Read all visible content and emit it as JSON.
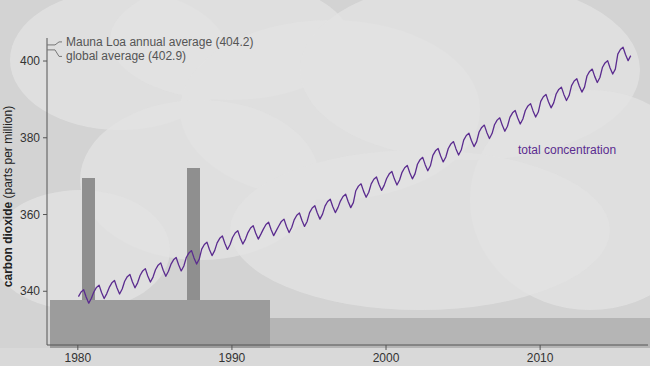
{
  "chart_data": {
    "type": "line",
    "x": [
      1980.04,
      1980.21,
      1980.38,
      1980.54,
      1980.71,
      1980.88,
      1981.04,
      1981.21,
      1981.38,
      1981.54,
      1981.71,
      1981.88,
      1982.04,
      1982.21,
      1982.38,
      1982.54,
      1982.71,
      1982.88,
      1983.04,
      1983.21,
      1983.38,
      1983.54,
      1983.71,
      1983.88,
      1984.04,
      1984.21,
      1984.38,
      1984.54,
      1984.71,
      1984.88,
      1985.04,
      1985.21,
      1985.38,
      1985.54,
      1985.71,
      1985.88,
      1986.04,
      1986.21,
      1986.38,
      1986.54,
      1986.71,
      1986.88,
      1987.04,
      1987.21,
      1987.38,
      1987.54,
      1987.71,
      1987.88,
      1988.04,
      1988.21,
      1988.38,
      1988.54,
      1988.71,
      1988.88,
      1989.04,
      1989.21,
      1989.38,
      1989.54,
      1989.71,
      1989.88,
      1990.04,
      1990.21,
      1990.38,
      1990.54,
      1990.71,
      1990.88,
      1991.04,
      1991.21,
      1991.38,
      1991.54,
      1991.71,
      1991.88,
      1992.04,
      1992.21,
      1992.38,
      1992.54,
      1992.71,
      1992.88,
      1993.04,
      1993.21,
      1993.38,
      1993.54,
      1993.71,
      1993.88,
      1994.04,
      1994.21,
      1994.38,
      1994.54,
      1994.71,
      1994.88,
      1995.04,
      1995.21,
      1995.38,
      1995.54,
      1995.71,
      1995.88,
      1996.04,
      1996.21,
      1996.38,
      1996.54,
      1996.71,
      1996.88,
      1997.04,
      1997.21,
      1997.38,
      1997.54,
      1997.71,
      1997.88,
      1998.04,
      1998.21,
      1998.38,
      1998.54,
      1998.71,
      1998.88,
      1999.04,
      1999.21,
      1999.38,
      1999.54,
      1999.71,
      1999.88,
      2000.04,
      2000.21,
      2000.38,
      2000.54,
      2000.71,
      2000.88,
      2001.04,
      2001.21,
      2001.38,
      2001.54,
      2001.71,
      2001.88,
      2002.04,
      2002.21,
      2002.38,
      2002.54,
      2002.71,
      2002.88,
      2003.04,
      2003.21,
      2003.38,
      2003.54,
      2003.71,
      2003.88,
      2004.04,
      2004.21,
      2004.38,
      2004.54,
      2004.71,
      2004.88,
      2005.04,
      2005.21,
      2005.38,
      2005.54,
      2005.71,
      2005.88,
      2006.04,
      2006.21,
      2006.38,
      2006.54,
      2006.71,
      2006.88,
      2007.04,
      2007.21,
      2007.38,
      2007.54,
      2007.71,
      2007.88,
      2008.04,
      2008.21,
      2008.38,
      2008.54,
      2008.71,
      2008.88,
      2009.04,
      2009.21,
      2009.38,
      2009.54,
      2009.71,
      2009.88,
      2010.04,
      2010.21,
      2010.38,
      2010.54,
      2010.71,
      2010.88,
      2011.04,
      2011.21,
      2011.38,
      2011.54,
      2011.71,
      2011.88,
      2012.04,
      2012.21,
      2012.38,
      2012.54,
      2012.71,
      2012.88,
      2013.04,
      2013.21,
      2013.38,
      2013.54,
      2013.71,
      2013.88,
      2014.04,
      2014.21,
      2014.38,
      2014.54,
      2014.71,
      2014.88,
      2015.04,
      2015.21,
      2015.38,
      2015.54,
      2015.71,
      2015.88
    ],
    "series": [
      {
        "name": "total concentration",
        "color": "#5b2c8f",
        "values": [
          338.6,
          339.8,
          340.4,
          338.5,
          336.9,
          338.2,
          339.8,
          341.0,
          341.6,
          339.7,
          338.1,
          339.4,
          341.0,
          342.2,
          342.8,
          340.9,
          339.3,
          340.6,
          342.6,
          343.8,
          344.4,
          342.5,
          340.9,
          342.2,
          344.1,
          345.3,
          345.9,
          344.0,
          342.4,
          343.7,
          345.6,
          346.8,
          347.4,
          345.5,
          343.9,
          345.2,
          347.0,
          348.2,
          348.8,
          346.9,
          345.3,
          346.6,
          348.8,
          350.0,
          350.6,
          348.7,
          347.1,
          348.4,
          351.0,
          352.2,
          352.8,
          350.9,
          349.3,
          350.6,
          352.6,
          353.8,
          354.4,
          352.5,
          350.9,
          352.2,
          354.0,
          355.2,
          355.8,
          353.9,
          352.3,
          353.6,
          355.3,
          356.5,
          357.1,
          355.2,
          353.6,
          354.9,
          356.2,
          357.4,
          358.0,
          356.1,
          354.5,
          355.8,
          357.0,
          358.2,
          358.8,
          356.9,
          355.3,
          356.6,
          358.6,
          359.8,
          360.4,
          358.5,
          356.9,
          358.2,
          360.5,
          361.7,
          362.3,
          360.4,
          358.8,
          360.1,
          362.2,
          363.4,
          364.0,
          362.1,
          360.5,
          361.8,
          363.5,
          364.7,
          365.3,
          363.4,
          361.8,
          363.1,
          366.2,
          367.4,
          368.0,
          366.1,
          364.5,
          365.8,
          368.0,
          369.2,
          369.8,
          367.9,
          366.3,
          367.6,
          369.4,
          370.6,
          371.2,
          369.3,
          367.7,
          369.0,
          371.0,
          372.2,
          372.8,
          370.9,
          369.3,
          370.6,
          373.1,
          374.3,
          374.9,
          373.0,
          371.4,
          372.7,
          375.4,
          376.6,
          377.2,
          375.3,
          373.7,
          375.0,
          377.2,
          378.4,
          379.0,
          377.1,
          375.5,
          376.8,
          379.4,
          380.6,
          381.2,
          379.3,
          377.7,
          379.0,
          381.5,
          382.7,
          383.3,
          381.4,
          379.8,
          381.1,
          383.4,
          384.6,
          385.2,
          383.3,
          381.7,
          383.0,
          385.3,
          386.5,
          387.1,
          385.2,
          383.6,
          384.9,
          387.1,
          388.3,
          388.9,
          387.0,
          385.4,
          386.7,
          389.5,
          390.7,
          391.3,
          389.4,
          387.8,
          389.1,
          391.4,
          392.6,
          393.2,
          391.3,
          389.7,
          391.0,
          393.6,
          394.8,
          395.4,
          393.5,
          391.9,
          393.2,
          396.1,
          397.3,
          397.9,
          396.0,
          394.4,
          395.7,
          398.3,
          399.5,
          400.1,
          398.2,
          396.6,
          397.9,
          401.8,
          403.0,
          403.6,
          401.7,
          400.1,
          401.4
        ]
      }
    ],
    "y_label": "carbon dioxide (parts per million)",
    "xlim": [
      1978,
      2017
    ],
    "ylim": [
      326,
      406
    ],
    "xticks": [
      1980,
      1990,
      2000,
      2010
    ],
    "yticks": [
      340,
      360,
      380,
      400
    ],
    "grid": false,
    "annotations": [
      {
        "text": "Mauna Loa annual average (404.2)",
        "value": 404.2
      },
      {
        "text": "global average (402.9)",
        "value": 402.9
      }
    ]
  }
}
